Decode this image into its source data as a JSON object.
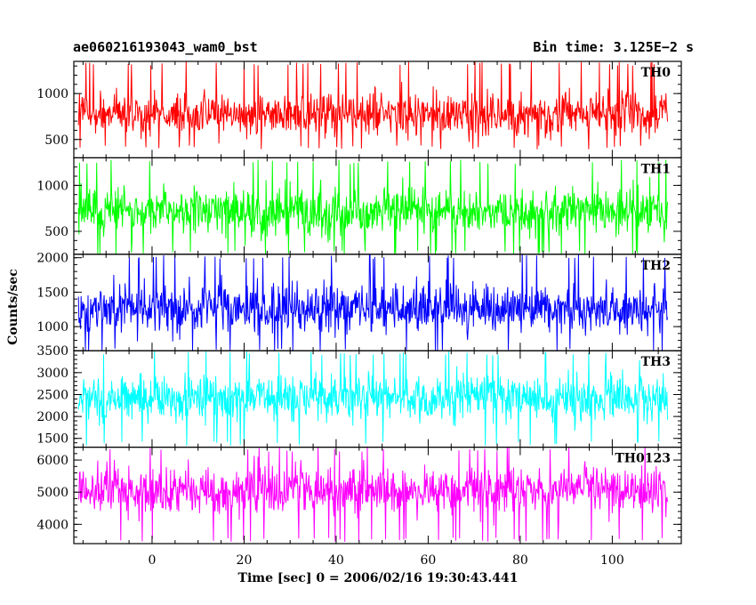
{
  "header": {
    "title_left": "ae060216193043_wam0_bst",
    "title_right": "Bin time: 3.125E−2 s"
  },
  "chart_data": {
    "type": "line",
    "title": "ae060216193043_wam0_bst",
    "subtitle": "Bin time: 3.125E−2 s",
    "xlabel": "Time [sec] 0 = 2006/02/16 19:30:43.441",
    "ylabel": "Counts/sec",
    "xlim": [
      -17,
      115
    ],
    "x_ticks": [
      0,
      20,
      40,
      60,
      80,
      100
    ],
    "x_tick_labels": [
      "0",
      "20",
      "40",
      "60",
      "80",
      "100"
    ],
    "data_x_range": [
      -16,
      112
    ],
    "bin_time": 0.03125,
    "grid": false,
    "series": [
      {
        "name": "TH0",
        "color": "#ff0000",
        "ylim": [
          300,
          1350
        ],
        "y_ticks": [
          500,
          1000
        ],
        "y_tick_labels": [
          "500",
          "1000"
        ],
        "mean": 780,
        "min": 390,
        "max": 1350
      },
      {
        "name": "TH1",
        "color": "#00ff00",
        "ylim": [
          250,
          1300
        ],
        "y_ticks": [
          500,
          1000
        ],
        "y_tick_labels": [
          "500",
          "1000"
        ],
        "mean": 720,
        "min": 240,
        "max": 1280
      },
      {
        "name": "TH2",
        "color": "#0000ff",
        "ylim": [
          650,
          2050
        ],
        "y_ticks": [
          1000,
          1500,
          2000
        ],
        "y_tick_labels": [
          "1000",
          "1500",
          "2000"
        ],
        "mean": 1270,
        "min": 620,
        "max": 2050
      },
      {
        "name": "TH3",
        "color": "#00ffff",
        "ylim": [
          1300,
          3500
        ],
        "y_ticks": [
          1500,
          2000,
          2500,
          3000,
          3500
        ],
        "y_tick_labels": [
          "1500",
          "2000",
          "2500",
          "3000",
          "3500"
        ],
        "mean": 2430,
        "min": 1330,
        "max": 3500
      },
      {
        "name": "TH0123",
        "color": "#ff00ff",
        "ylim": [
          3400,
          6400
        ],
        "y_ticks": [
          4000,
          5000,
          6000
        ],
        "y_tick_labels": [
          "4000",
          "5000",
          "6000"
        ],
        "mean": 5050,
        "min": 3450,
        "max": 6400
      }
    ]
  }
}
